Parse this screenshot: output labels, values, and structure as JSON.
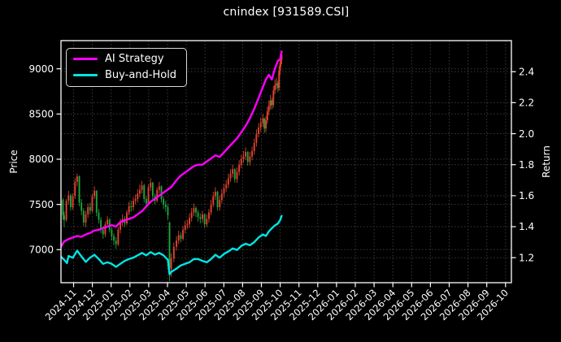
{
  "title": "cnindex [931589.CSI]",
  "axes": {
    "left_label": "Price",
    "right_label": "Return"
  },
  "legend": {
    "items": [
      {
        "label": "AI Strategy",
        "color": "#ff00ff"
      },
      {
        "label": "Buy-and-Hold",
        "color": "#00e5e5"
      }
    ]
  },
  "colors": {
    "background": "#000000",
    "text": "#ffffff",
    "spine": "#ffffff",
    "grid": "#3a3a3a",
    "candle_up": "#e0432e",
    "candle_down": "#1fa33c",
    "ai_strategy": "#ff00ff",
    "buy_and_hold": "#00e5e5"
  },
  "chart_data": {
    "type": "candlestick",
    "title": "cnindex [931589.CSI]",
    "xlabel": "",
    "ylabel_left": "Price",
    "ylabel_right": "Return",
    "grid": true,
    "legend_position": "upper left",
    "x_unit": "months from 2024-11-01 (tick 0), data estimated from pixels",
    "x_ticks": [
      "2024-11",
      "2024-12",
      "2025-01",
      "2025-02",
      "2025-03",
      "2025-04",
      "2025-05",
      "2025-06",
      "2025-07",
      "2025-08",
      "2025-09",
      "2025-10",
      "2025-11",
      "2025-12",
      "2026-01",
      "2026-02",
      "2026-03",
      "2026-04",
      "2026-05",
      "2026-06",
      "2026-07",
      "2026-08",
      "2026-09",
      "2026-10"
    ],
    "price_ticks": [
      7000,
      7500,
      8000,
      8500,
      9000
    ],
    "return_ticks": [
      1.2,
      1.4,
      1.6,
      1.8,
      2.0,
      2.2,
      2.4
    ],
    "price_range_visible": [
      6630,
      9310
    ],
    "return_range_visible": [
      1.04,
      2.61
    ],
    "series": [
      {
        "name": "AI Strategy",
        "axis": "return",
        "color": "#ff00ff",
        "points": [
          [
            -0.68,
            1.27
          ],
          [
            -0.5,
            1.305
          ],
          [
            -0.27,
            1.32
          ],
          [
            -0.04,
            1.33
          ],
          [
            0.19,
            1.34
          ],
          [
            0.42,
            1.335
          ],
          [
            0.65,
            1.35
          ],
          [
            0.88,
            1.36
          ],
          [
            1.11,
            1.375
          ],
          [
            1.34,
            1.38
          ],
          [
            1.57,
            1.39
          ],
          [
            1.8,
            1.4
          ],
          [
            2.03,
            1.41
          ],
          [
            2.26,
            1.4
          ],
          [
            2.49,
            1.43
          ],
          [
            2.72,
            1.44
          ],
          [
            2.95,
            1.45
          ],
          [
            3.18,
            1.46
          ],
          [
            3.41,
            1.48
          ],
          [
            3.64,
            1.5
          ],
          [
            3.87,
            1.53
          ],
          [
            4.1,
            1.56
          ],
          [
            4.33,
            1.58
          ],
          [
            4.56,
            1.6
          ],
          [
            4.79,
            1.62
          ],
          [
            5.02,
            1.64
          ],
          [
            5.2,
            1.655
          ],
          [
            5.48,
            1.7
          ],
          [
            5.71,
            1.73
          ],
          [
            5.94,
            1.75
          ],
          [
            6.17,
            1.77
          ],
          [
            6.4,
            1.79
          ],
          [
            6.63,
            1.8
          ],
          [
            6.86,
            1.8
          ],
          [
            7.09,
            1.82
          ],
          [
            7.32,
            1.84
          ],
          [
            7.55,
            1.86
          ],
          [
            7.78,
            1.85
          ],
          [
            8.01,
            1.88
          ],
          [
            8.24,
            1.91
          ],
          [
            8.47,
            1.94
          ],
          [
            8.7,
            1.97
          ],
          [
            8.93,
            2.01
          ],
          [
            9.16,
            2.05
          ],
          [
            9.39,
            2.1
          ],
          [
            9.62,
            2.16
          ],
          [
            9.85,
            2.23
          ],
          [
            10.08,
            2.3
          ],
          [
            10.24,
            2.35
          ],
          [
            10.4,
            2.38
          ],
          [
            10.56,
            2.35
          ],
          [
            10.72,
            2.42
          ],
          [
            10.88,
            2.47
          ],
          [
            11.0,
            2.48
          ],
          [
            11.08,
            2.53
          ]
        ]
      },
      {
        "name": "Buy-and-Hold",
        "axis": "return",
        "color": "#00e5e5",
        "points": [
          [
            -0.68,
            1.208
          ],
          [
            -0.5,
            1.186
          ],
          [
            -0.35,
            1.165
          ],
          [
            -0.27,
            1.211
          ],
          [
            -0.04,
            1.2
          ],
          [
            0.19,
            1.245
          ],
          [
            0.42,
            1.208
          ],
          [
            0.65,
            1.173
          ],
          [
            0.88,
            1.2
          ],
          [
            1.11,
            1.219
          ],
          [
            1.34,
            1.191
          ],
          [
            1.57,
            1.16
          ],
          [
            1.8,
            1.17
          ],
          [
            2.03,
            1.16
          ],
          [
            2.26,
            1.141
          ],
          [
            2.49,
            1.16
          ],
          [
            2.72,
            1.179
          ],
          [
            2.95,
            1.191
          ],
          [
            3.18,
            1.2
          ],
          [
            3.41,
            1.215
          ],
          [
            3.64,
            1.231
          ],
          [
            3.87,
            1.215
          ],
          [
            4.1,
            1.236
          ],
          [
            4.33,
            1.22
          ],
          [
            4.56,
            1.231
          ],
          [
            4.79,
            1.215
          ],
          [
            5.02,
            1.186
          ],
          [
            5.11,
            1.093
          ],
          [
            5.2,
            1.108
          ],
          [
            5.48,
            1.13
          ],
          [
            5.71,
            1.15
          ],
          [
            5.94,
            1.16
          ],
          [
            6.17,
            1.17
          ],
          [
            6.4,
            1.191
          ],
          [
            6.63,
            1.191
          ],
          [
            6.86,
            1.179
          ],
          [
            7.09,
            1.17
          ],
          [
            7.32,
            1.191
          ],
          [
            7.55,
            1.219
          ],
          [
            7.78,
            1.2
          ],
          [
            8.01,
            1.224
          ],
          [
            8.24,
            1.24
          ],
          [
            8.47,
            1.26
          ],
          [
            8.7,
            1.25
          ],
          [
            8.93,
            1.276
          ],
          [
            9.16,
            1.29
          ],
          [
            9.39,
            1.28
          ],
          [
            9.62,
            1.3
          ],
          [
            9.85,
            1.33
          ],
          [
            10.08,
            1.35
          ],
          [
            10.24,
            1.34
          ],
          [
            10.4,
            1.37
          ],
          [
            10.56,
            1.39
          ],
          [
            10.72,
            1.408
          ],
          [
            10.88,
            1.42
          ],
          [
            11.0,
            1.443
          ],
          [
            11.08,
            1.47
          ]
        ]
      }
    ],
    "candles_format": "[t, open, high, low, close] on Price axis; up days red, down days green",
    "candles": [
      [
        -0.68,
        7490,
        7600,
        7430,
        7550
      ],
      [
        -0.565,
        7550,
        7570,
        7330,
        7380
      ],
      [
        -0.5,
        7380,
        7420,
        7250,
        7330
      ],
      [
        -0.385,
        7330,
        7560,
        7310,
        7540
      ],
      [
        -0.27,
        7540,
        7650,
        7500,
        7600
      ],
      [
        -0.155,
        7600,
        7620,
        7430,
        7470
      ],
      [
        -0.04,
        7470,
        7620,
        7440,
        7590
      ],
      [
        0.075,
        7590,
        7790,
        7560,
        7750
      ],
      [
        0.19,
        7750,
        7840,
        7700,
        7810
      ],
      [
        0.305,
        7810,
        7820,
        7480,
        7520
      ],
      [
        0.42,
        7520,
        7560,
        7380,
        7430
      ],
      [
        0.535,
        7430,
        7460,
        7260,
        7300
      ],
      [
        0.65,
        7300,
        7430,
        7250,
        7390
      ],
      [
        0.765,
        7390,
        7510,
        7350,
        7470
      ],
      [
        0.88,
        7470,
        7520,
        7390,
        7430
      ],
      [
        0.995,
        7430,
        7620,
        7410,
        7590
      ],
      [
        1.11,
        7590,
        7700,
        7560,
        7650
      ],
      [
        1.225,
        7650,
        7660,
        7370,
        7410
      ],
      [
        1.34,
        7410,
        7450,
        7290,
        7330
      ],
      [
        1.455,
        7330,
        7360,
        7180,
        7220
      ],
      [
        1.57,
        7220,
        7260,
        7120,
        7170
      ],
      [
        1.685,
        7170,
        7310,
        7140,
        7280
      ],
      [
        1.8,
        7280,
        7370,
        7250,
        7330
      ],
      [
        1.915,
        7330,
        7350,
        7190,
        7220
      ],
      [
        2.03,
        7220,
        7250,
        7100,
        7150
      ],
      [
        2.145,
        7150,
        7180,
        7050,
        7100
      ],
      [
        2.26,
        7100,
        7140,
        7010,
        7060
      ],
      [
        2.375,
        7060,
        7250,
        7040,
        7220
      ],
      [
        2.49,
        7220,
        7340,
        7180,
        7300
      ],
      [
        2.605,
        7300,
        7390,
        7260,
        7340
      ],
      [
        2.72,
        7340,
        7370,
        7250,
        7290
      ],
      [
        2.835,
        7290,
        7440,
        7270,
        7410
      ],
      [
        2.95,
        7410,
        7530,
        7380,
        7480
      ],
      [
        3.065,
        7480,
        7540,
        7420,
        7470
      ],
      [
        3.18,
        7470,
        7580,
        7430,
        7540
      ],
      [
        3.295,
        7540,
        7610,
        7500,
        7560
      ],
      [
        3.41,
        7560,
        7670,
        7520,
        7620
      ],
      [
        3.525,
        7620,
        7720,
        7580,
        7660
      ],
      [
        3.64,
        7660,
        7760,
        7620,
        7710
      ],
      [
        3.755,
        7710,
        7730,
        7520,
        7560
      ],
      [
        3.87,
        7560,
        7590,
        7460,
        7510
      ],
      [
        3.985,
        7510,
        7720,
        7490,
        7690
      ],
      [
        4.1,
        7690,
        7790,
        7650,
        7740
      ],
      [
        4.215,
        7740,
        7750,
        7550,
        7590
      ],
      [
        4.33,
        7590,
        7620,
        7500,
        7540
      ],
      [
        4.445,
        7540,
        7690,
        7520,
        7660
      ],
      [
        4.56,
        7660,
        7750,
        7620,
        7700
      ],
      [
        4.675,
        7700,
        7710,
        7520,
        7560
      ],
      [
        4.79,
        7560,
        7590,
        7450,
        7500
      ],
      [
        4.905,
        7500,
        7540,
        7420,
        7470
      ],
      [
        5.02,
        7470,
        7500,
        7330,
        7380
      ],
      [
        5.11,
        7300,
        7310,
        6650,
        6800
      ],
      [
        5.2,
        6780,
        6960,
        6700,
        6900
      ],
      [
        5.34,
        6900,
        7080,
        6860,
        7030
      ],
      [
        5.48,
        7030,
        7150,
        6990,
        7100
      ],
      [
        5.595,
        7100,
        7210,
        7060,
        7160
      ],
      [
        5.71,
        7160,
        7190,
        7080,
        7120
      ],
      [
        5.825,
        7120,
        7260,
        7100,
        7220
      ],
      [
        5.94,
        7220,
        7320,
        7180,
        7270
      ],
      [
        6.055,
        7270,
        7330,
        7230,
        7280
      ],
      [
        6.17,
        7280,
        7400,
        7240,
        7350
      ],
      [
        6.285,
        7350,
        7460,
        7310,
        7410
      ],
      [
        6.4,
        7410,
        7510,
        7370,
        7460
      ],
      [
        6.515,
        7460,
        7480,
        7360,
        7410
      ],
      [
        6.63,
        7410,
        7440,
        7310,
        7360
      ],
      [
        6.745,
        7360,
        7400,
        7290,
        7340
      ],
      [
        6.86,
        7340,
        7430,
        7300,
        7390
      ],
      [
        6.975,
        7390,
        7400,
        7240,
        7280
      ],
      [
        7.09,
        7280,
        7390,
        7250,
        7340
      ],
      [
        7.205,
        7340,
        7450,
        7300,
        7410
      ],
      [
        7.32,
        7410,
        7550,
        7380,
        7500
      ],
      [
        7.435,
        7500,
        7640,
        7470,
        7590
      ],
      [
        7.55,
        7590,
        7690,
        7550,
        7640
      ],
      [
        7.665,
        7640,
        7650,
        7430,
        7470
      ],
      [
        7.78,
        7470,
        7600,
        7430,
        7550
      ],
      [
        7.895,
        7550,
        7670,
        7510,
        7620
      ],
      [
        8.01,
        7620,
        7730,
        7580,
        7680
      ],
      [
        8.125,
        7680,
        7770,
        7640,
        7720
      ],
      [
        8.24,
        7720,
        7840,
        7680,
        7790
      ],
      [
        8.355,
        7790,
        7890,
        7750,
        7840
      ],
      [
        8.47,
        7840,
        7940,
        7800,
        7890
      ],
      [
        8.585,
        7890,
        7900,
        7740,
        7780
      ],
      [
        8.7,
        7780,
        7910,
        7740,
        7860
      ],
      [
        8.815,
        7860,
        7990,
        7820,
        7940
      ],
      [
        8.93,
        7940,
        8050,
        7900,
        8000
      ],
      [
        9.045,
        8000,
        8090,
        7960,
        8030
      ],
      [
        9.16,
        8030,
        8130,
        7990,
        8080
      ],
      [
        9.275,
        8080,
        8090,
        7930,
        7970
      ],
      [
        9.39,
        7970,
        8080,
        7930,
        8030
      ],
      [
        9.505,
        8030,
        8140,
        7990,
        8090
      ],
      [
        9.62,
        8090,
        8230,
        8050,
        8180
      ],
      [
        9.735,
        8180,
        8330,
        8140,
        8280
      ],
      [
        9.85,
        8280,
        8400,
        8240,
        8350
      ],
      [
        9.965,
        8350,
        8460,
        8300,
        8400
      ],
      [
        10.08,
        8400,
        8500,
        8360,
        8450
      ],
      [
        10.16,
        8450,
        8460,
        8290,
        8340
      ],
      [
        10.24,
        8340,
        8480,
        8300,
        8430
      ],
      [
        10.32,
        8430,
        8580,
        8390,
        8530
      ],
      [
        10.4,
        8530,
        8650,
        8490,
        8590
      ],
      [
        10.48,
        8590,
        8710,
        8550,
        8650
      ],
      [
        10.56,
        8650,
        8680,
        8550,
        8600
      ],
      [
        10.64,
        8600,
        8810,
        8570,
        8760
      ],
      [
        10.72,
        8760,
        8880,
        8720,
        8820
      ],
      [
        10.8,
        8820,
        8900,
        8770,
        8840
      ],
      [
        10.88,
        8840,
        8870,
        8740,
        8790
      ],
      [
        10.94,
        8790,
        9030,
        8760,
        8980
      ],
      [
        11.0,
        8980,
        9110,
        8930,
        9060
      ],
      [
        11.04,
        9060,
        9160,
        9020,
        9150
      ],
      [
        11.08,
        9100,
        9175,
        9050,
        9160
      ]
    ]
  }
}
